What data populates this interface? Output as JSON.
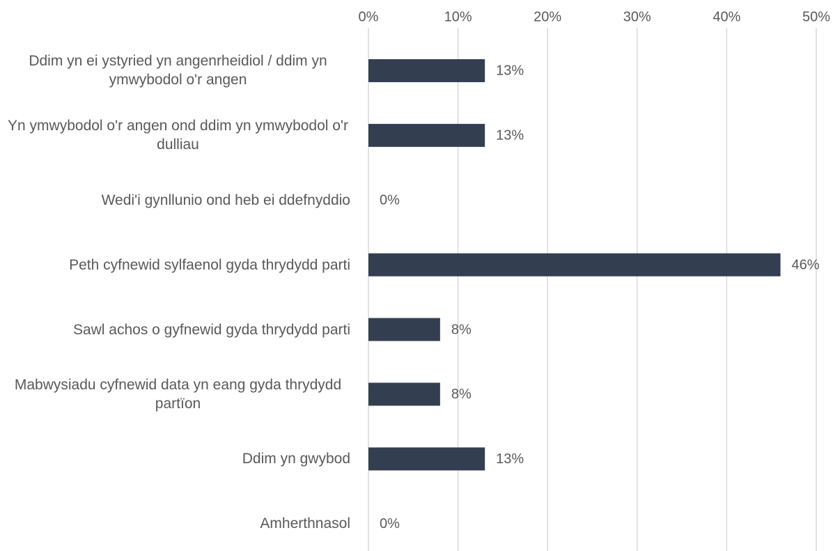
{
  "chart_data": {
    "type": "barh",
    "categories": [
      "Ddim yn ei ystyried yn angenrheidiol / ddim yn ymwybodol o'r angen",
      "Yn ymwybodol o'r angen ond ddim yn ymwybodol o'r dulliau",
      "Wedi'i gynllunio ond heb ei ddefnyddio",
      "Peth cyfnewid sylfaenol gyda thrydydd parti",
      "Sawl achos o gyfnewid gyda thrydydd parti",
      "Mabwysiadu cyfnewid data yn eang gyda thrydydd partïon",
      "Ddim yn gwybod",
      "Amherthnasol"
    ],
    "values": [
      13,
      13,
      0,
      46,
      8,
      8,
      13,
      0
    ],
    "value_labels": [
      "13%",
      "13%",
      "0%",
      "46%",
      "8%",
      "8%",
      "13%",
      "0%"
    ],
    "color": "#333f50",
    "xlim": [
      0,
      50
    ],
    "xticks": [
      {
        "value": 0,
        "label": "0%"
      },
      {
        "value": 10,
        "label": "10%"
      },
      {
        "value": 20,
        "label": "20%"
      },
      {
        "value": 30,
        "label": "30%"
      },
      {
        "value": 40,
        "label": "40%"
      },
      {
        "value": 50,
        "label": "50%"
      }
    ],
    "grid": true
  }
}
